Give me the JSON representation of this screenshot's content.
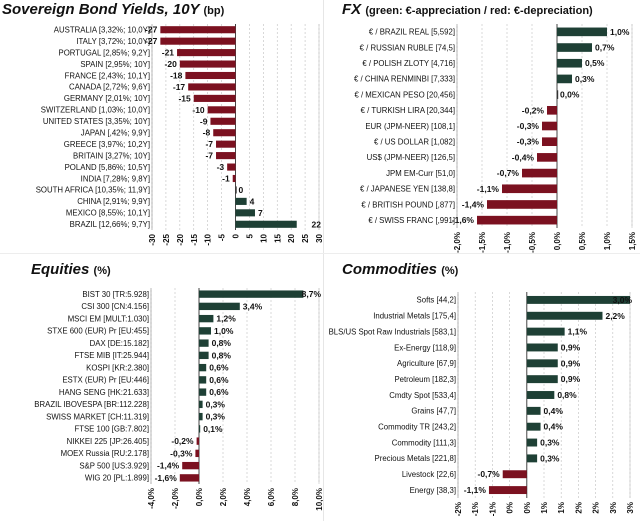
{
  "colors": {
    "positive": "#1e4035",
    "negative": "#7b1120",
    "grid": "#bfbfbf",
    "text": "#111111"
  },
  "panels": {
    "bonds": {
      "title": "Sovereign Bond Yields, 10Y",
      "subtitle": "(bp)"
    },
    "fx": {
      "title": "FX",
      "subtitle": "(green: €-appreciation / red: €-depreciation)"
    },
    "equities": {
      "title": "Equities",
      "subtitle": "(%)"
    },
    "commodities": {
      "title": "Commodities",
      "subtitle": "(%)"
    }
  },
  "chart_data": [
    {
      "id": "bonds",
      "type": "bar",
      "orientation": "horizontal",
      "categories": [
        "AUSTRALIA [3,32%; 10,0Y]",
        "ITALY [3,72%; 10,0Y]",
        "PORTUGAL [2,85%; 9,2Y]",
        "SPAIN [2,95%; 10Y]",
        "FRANCE [2,43%; 10,1Y]",
        "CANADA [2,72%; 9,6Y]",
        "GERMANY [2,01%; 10Y]",
        "SWITZERLAND [1,03%; 10,0Y]",
        "UNITED STATES [3,35%; 10Y]",
        "JAPAN [,42%; 9,9Y]",
        "GREECE [3,97%; 10,2Y]",
        "BRITAIN [3,27%; 10Y]",
        "POLAND [5,86%; 10,5Y]",
        "INDIA [7,28%; 9,8Y]",
        "SOUTH AFRICA [10,35%; 11,9Y]",
        "CHINA [2,91%; 9,9Y]",
        "MEXICO [8,55%; 10,1Y]",
        "BRAZIL [12,66%; 9,7Y]"
      ],
      "values": [
        -27,
        -27,
        -21,
        -20,
        -18,
        -17,
        -15,
        -10,
        -9,
        -8,
        -7,
        -7,
        -3,
        -1,
        0,
        4,
        7,
        22
      ],
      "data_labels": [
        "-27",
        "-27",
        "-21",
        "-20",
        "-18",
        "-17",
        "-15",
        "-10",
        "-9",
        "-8",
        "-7",
        "-7",
        "-3",
        "-1",
        "0",
        "4",
        "7",
        "22"
      ],
      "xlim": [
        -30,
        30
      ],
      "xticks": [
        "-30",
        "-25",
        "-20",
        "-15",
        "-10",
        "-5",
        "0",
        "5",
        "10",
        "15",
        "20",
        "25",
        "30"
      ],
      "grid": true
    },
    {
      "id": "fx",
      "type": "bar",
      "orientation": "horizontal",
      "categories": [
        "€ / BRAZIL REAL [5,592]",
        "€ / RUSSIAN RUBLE [74,5]",
        "€ / POLISH ZLOTY [4,716]",
        "€ / CHINA RENMINBI [7,333]",
        "€ / MEXICAN PESO [20,456]",
        "€ / TURKISH LIRA [20,344]",
        "EUR (JPM-NEER) [108,1]",
        "€ / US DOLLAR [1,082]",
        "US$ (JPM-NEER) [126,5]",
        "JPM EM-Curr [51,0]",
        "€ / JAPANESE YEN [138,8]",
        "€ / BRITISH POUND [,877]",
        "€ / SWISS FRANC [,991]"
      ],
      "values": [
        1.0,
        0.7,
        0.5,
        0.3,
        0.0,
        -0.2,
        -0.3,
        -0.3,
        -0.4,
        -0.7,
        -1.1,
        -1.4,
        -1.6
      ],
      "data_labels": [
        "1,0%",
        "0,7%",
        "0,5%",
        "0,3%",
        "0,0%",
        "-0,2%",
        "-0,3%",
        "-0,3%",
        "-0,4%",
        "-0,7%",
        "-1,1%",
        "-1,4%",
        "-1,6%"
      ],
      "xlim": [
        -2.0,
        1.5
      ],
      "xticks": [
        "-2,0%",
        "-1,5%",
        "-1,0%",
        "-0,5%",
        "0,0%",
        "0,5%",
        "1,0%",
        "1,5%"
      ],
      "grid": true
    },
    {
      "id": "equities",
      "type": "bar",
      "orientation": "horizontal",
      "categories": [
        "BIST 30 [TR:5.928]",
        "CSI 300 [CN:4.156]",
        "MSCI EM [MULT:1.030]",
        "STXE 600 (EUR) Pr [EU:455]",
        "DAX [DE:15.182]",
        "FTSE MIB [IT:25.944]",
        "KOSPI [KR:2.380]",
        "ESTX (EUR) Pr [EU:446]",
        "HANG SENG [HK:21.633]",
        "BRAZIL IBOVESPA [BR:112.228]",
        "SWISS MARKET [CH:11.319]",
        "FTSE 100 [GB:7.802]",
        "NIKKEI 225 [JP:26.405]",
        "MOEX Russia [RU:2.178]",
        "S&P 500 [US:3.929]",
        "WIG 20 [PL:1.899]"
      ],
      "values": [
        8.7,
        3.4,
        1.2,
        1.0,
        0.8,
        0.8,
        0.6,
        0.6,
        0.6,
        0.3,
        0.3,
        0.1,
        -0.2,
        -0.3,
        -1.4,
        -1.6
      ],
      "data_labels": [
        "8,7%",
        "3,4%",
        "1,2%",
        "1,0%",
        "0,8%",
        "0,8%",
        "0,6%",
        "0,6%",
        "0,6%",
        "0,3%",
        "0,3%",
        "0,1%",
        "-0,2%",
        "-0,3%",
        "-1,4%",
        "-1,6%"
      ],
      "xlim": [
        -4.0,
        10.0
      ],
      "xticks": [
        "-4,0%",
        "-2,0%",
        "0,0%",
        "2,0%",
        "4,0%",
        "6,0%",
        "8,0%",
        "10,0%"
      ],
      "grid": true
    },
    {
      "id": "commodities",
      "type": "bar",
      "orientation": "horizontal",
      "categories": [
        "Softs [44,2]",
        "Industrial Metals [175,4]",
        "BLS/US Spot Raw Industrials [583,1]",
        "Ex-Energy [118,9]",
        "Agriculture [67,9]",
        "Petroleum [182,3]",
        "Cmdty Spot [533,4]",
        "Grains [47,7]",
        "Commodity TR [243,2]",
        "Commodity [111,3]",
        "Precious Metals [221,8]",
        "Livestock [22,6]",
        "Energy [38,3]"
      ],
      "values": [
        3.0,
        2.2,
        1.1,
        0.9,
        0.9,
        0.9,
        0.8,
        0.4,
        0.4,
        0.3,
        0.3,
        -0.7,
        -1.1
      ],
      "data_labels": [
        "3,0%",
        "2,2%",
        "1,1%",
        "0,9%",
        "0,9%",
        "0,9%",
        "0,8%",
        "0,4%",
        "0,4%",
        "0,3%",
        "0,3%",
        "-0,7%",
        "-1,1%"
      ],
      "xlim": [
        -2,
        3
      ],
      "xticks": [
        "-2%",
        "-1%",
        "-1%",
        "0%",
        "0%",
        "1%",
        "1%",
        "2%",
        "2%",
        "3%",
        "3%"
      ],
      "grid": true
    }
  ]
}
